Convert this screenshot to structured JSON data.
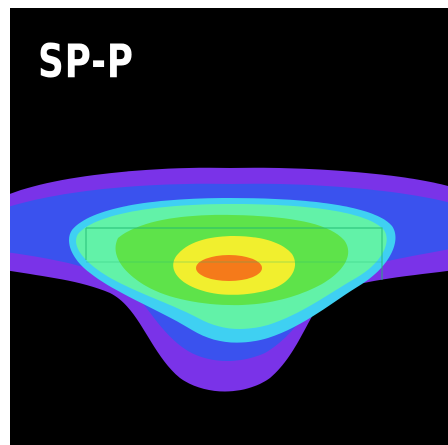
{
  "figure": {
    "title": "SP-P"
  },
  "colors": {
    "background": "#000000",
    "frame": "#ffffff",
    "title": "#ffffff",
    "outer_halo": "#7a33e8",
    "blue_ring": "#3a52ee",
    "cyan_ring": "#3fd0f2",
    "mint_ring": "#62f2a8",
    "green_ring": "#5ee34a",
    "yellow_core": "#f1ef2e",
    "orange_center": "#f57a1a",
    "inner_box_outline": "#22b872"
  }
}
